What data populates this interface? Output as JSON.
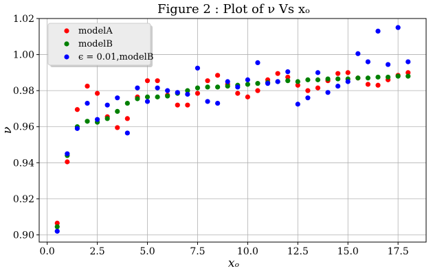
{
  "chart_data": {
    "type": "scatter",
    "title": "Figure 2 : Plot of ν Vs xₒ",
    "xlabel": "xₒ",
    "ylabel": "ν",
    "xlim": [
      -0.4,
      18.9
    ],
    "ylim": [
      0.896,
      1.02
    ],
    "xticks": [
      0.0,
      2.5,
      5.0,
      7.5,
      10.0,
      12.5,
      15.0,
      17.5
    ],
    "xtick_labels": [
      "0.0",
      "2.5",
      "5.0",
      "7.5",
      "10.0",
      "12.5",
      "15.0",
      "17.5"
    ],
    "yticks": [
      0.9,
      0.92,
      0.94,
      0.96,
      0.98,
      1.0,
      1.02
    ],
    "ytick_labels": [
      "0.90",
      "0.92",
      "0.94",
      "0.96",
      "0.98",
      "1.00",
      "1.02"
    ],
    "grid": true,
    "legend_position": "top-left",
    "x": [
      0.5,
      1.0,
      1.5,
      2.0,
      2.5,
      3.0,
      3.5,
      4.0,
      4.5,
      5.0,
      5.5,
      6.0,
      6.5,
      7.0,
      7.5,
      8.0,
      8.5,
      9.0,
      9.5,
      10.0,
      10.5,
      11.0,
      11.5,
      12.0,
      12.5,
      13.0,
      13.5,
      14.0,
      14.5,
      15.0,
      15.5,
      16.0,
      16.5,
      17.0,
      17.5,
      18.0
    ],
    "series": [
      {
        "name": "modelA",
        "color": "#ff0000",
        "values": [
          0.9065,
          0.9405,
          0.9695,
          0.9825,
          0.9785,
          0.9655,
          0.9595,
          0.9645,
          0.9765,
          0.9855,
          0.9855,
          0.9775,
          0.972,
          0.972,
          0.9785,
          0.9855,
          0.9885,
          0.9835,
          0.9785,
          0.9765,
          0.98,
          0.986,
          0.9895,
          0.9875,
          0.983,
          0.98,
          0.9815,
          0.9855,
          0.9895,
          0.99,
          0.987,
          0.9835,
          0.983,
          0.986,
          0.9885,
          0.99
        ]
      },
      {
        "name": "modelB",
        "color": "#008000",
        "values": [
          0.9045,
          0.944,
          0.96,
          0.963,
          0.9625,
          0.9645,
          0.9685,
          0.973,
          0.9755,
          0.9765,
          0.9765,
          0.977,
          0.9785,
          0.98,
          0.9815,
          0.982,
          0.982,
          0.9825,
          0.983,
          0.9835,
          0.984,
          0.9845,
          0.985,
          0.9855,
          0.985,
          0.986,
          0.986,
          0.9865,
          0.9865,
          0.9865,
          0.987,
          0.987,
          0.9875,
          0.9875,
          0.988,
          0.988
        ]
      },
      {
        "name": "ϵ = 0.01,modelB",
        "color": "#0000ff",
        "values": [
          0.902,
          0.945,
          0.959,
          0.973,
          0.964,
          0.972,
          0.976,
          0.9565,
          0.9815,
          0.974,
          0.9815,
          0.98,
          0.979,
          0.978,
          0.9925,
          0.974,
          0.973,
          0.985,
          0.982,
          0.986,
          0.9955,
          0.984,
          0.985,
          0.9905,
          0.9725,
          0.976,
          0.99,
          0.979,
          0.9825,
          0.985,
          1.0005,
          0.996,
          1.013,
          0.9945,
          1.015,
          0.996
        ]
      }
    ]
  }
}
